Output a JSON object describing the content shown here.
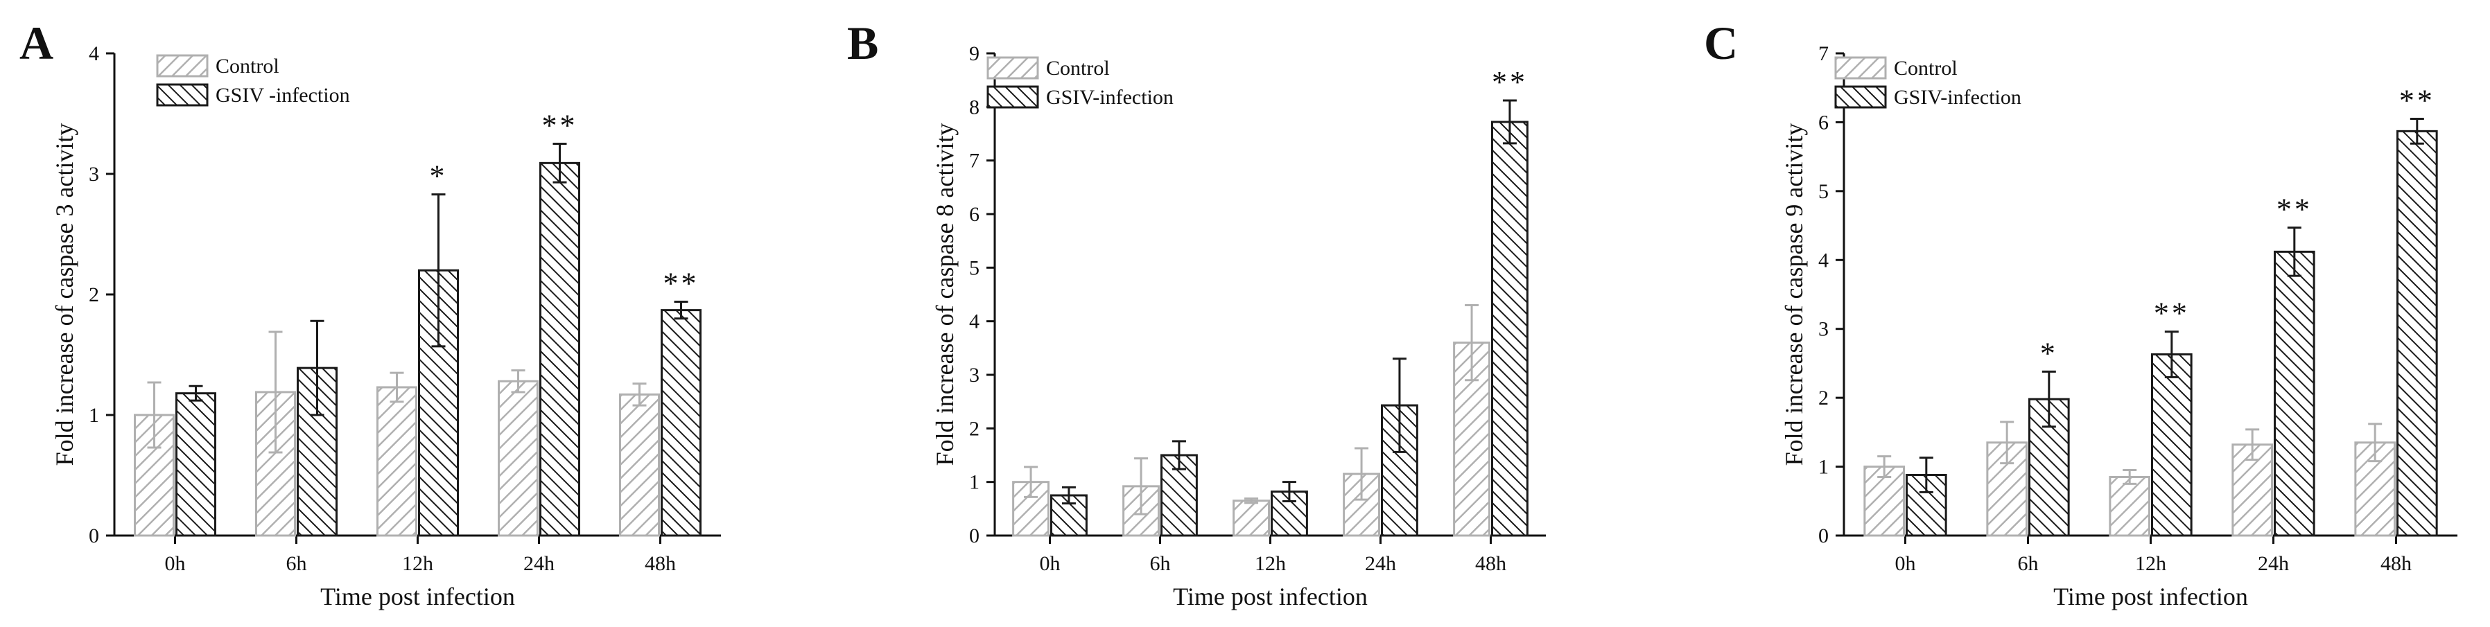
{
  "figure": {
    "panels": [
      "A",
      "B",
      "C"
    ]
  },
  "colors": {
    "control": "#b0b0b0",
    "infected": "#1a1a1a",
    "axis": "#111111"
  },
  "chart_data": [
    {
      "type": "bar",
      "panel_label": "A",
      "categories": [
        "0h",
        "6h",
        "12h",
        "24h",
        "48h"
      ],
      "series": [
        {
          "name": "Control",
          "values": [
            1.0,
            1.19,
            1.23,
            1.28,
            1.17
          ],
          "errors": [
            0.27,
            0.5,
            0.12,
            0.09,
            0.09
          ],
          "sig": [
            "",
            "",
            "",
            "",
            ""
          ]
        },
        {
          "name": "GSIV -infection",
          "values": [
            1.18,
            1.39,
            2.2,
            3.09,
            1.87
          ],
          "errors": [
            0.06,
            0.39,
            0.63,
            0.16,
            0.07
          ],
          "sig": [
            "",
            "",
            "*",
            "**",
            "**"
          ]
        }
      ],
      "title": "",
      "xlabel": "Time post infection",
      "ylabel": "Fold increase of caspase 3 activity",
      "ylim": [
        0,
        4
      ],
      "yticks": [
        "0",
        "1",
        "2",
        "3",
        "4"
      ],
      "legend": "top-left"
    },
    {
      "type": "bar",
      "panel_label": "B",
      "categories": [
        "0h",
        "6h",
        "12h",
        "24h",
        "48h"
      ],
      "series": [
        {
          "name": "Control",
          "values": [
            1.0,
            0.92,
            0.65,
            1.15,
            3.6
          ],
          "errors": [
            0.28,
            0.52,
            0.04,
            0.48,
            0.7
          ],
          "sig": [
            "",
            "",
            "",
            "",
            ""
          ]
        },
        {
          "name": "GSIV-infection",
          "values": [
            0.75,
            1.5,
            0.82,
            2.43,
            7.72
          ],
          "errors": [
            0.15,
            0.26,
            0.18,
            0.87,
            0.4
          ],
          "sig": [
            "",
            "",
            "",
            "",
            "**"
          ]
        }
      ],
      "title": "",
      "xlabel": "Time post infection",
      "ylabel": "Fold increase of caspase 8 activity",
      "ylim": [
        0,
        9
      ],
      "yticks": [
        "0",
        "1",
        "2",
        "3",
        "4",
        "5",
        "6",
        "7",
        "8",
        "9"
      ],
      "legend": "top-left"
    },
    {
      "type": "bar",
      "panel_label": "C",
      "categories": [
        "0h",
        "6h",
        "12h",
        "24h",
        "48h"
      ],
      "series": [
        {
          "name": "Control",
          "values": [
            1.0,
            1.35,
            0.85,
            1.32,
            1.35
          ],
          "errors": [
            0.15,
            0.3,
            0.1,
            0.22,
            0.27
          ],
          "sig": [
            "",
            "",
            "",
            "",
            ""
          ]
        },
        {
          "name": "GSIV-infection",
          "values": [
            0.88,
            1.98,
            2.63,
            4.12,
            5.87
          ],
          "errors": [
            0.25,
            0.4,
            0.33,
            0.35,
            0.18
          ],
          "sig": [
            "",
            "*",
            "**",
            "**",
            "**"
          ]
        }
      ],
      "title": "",
      "xlabel": "Time post infection",
      "ylabel": "Fold increase of caspase 9 activity",
      "ylim": [
        0,
        7
      ],
      "yticks": [
        "0",
        "1",
        "2",
        "3",
        "4",
        "5",
        "6",
        "7"
      ],
      "legend": "top-left"
    }
  ]
}
